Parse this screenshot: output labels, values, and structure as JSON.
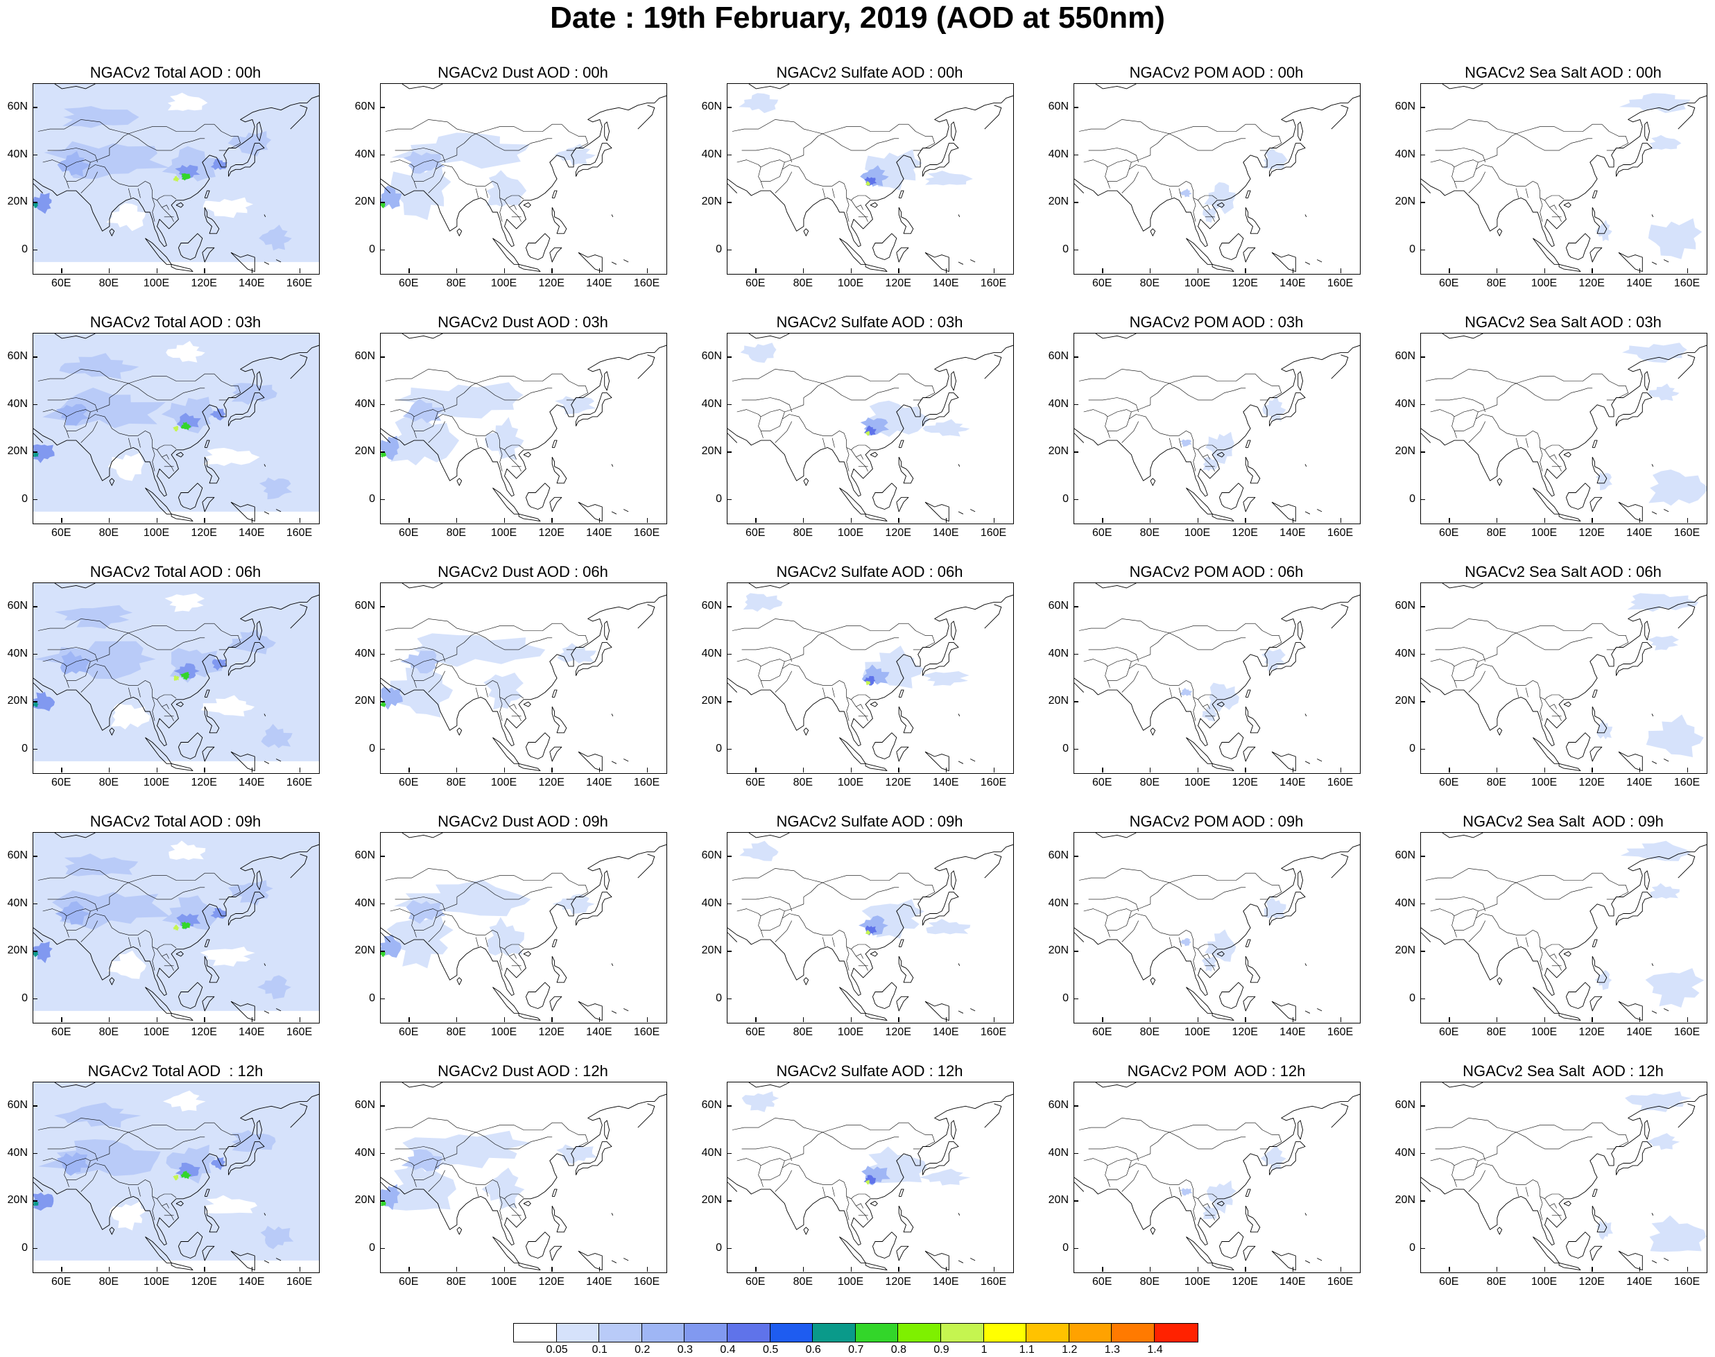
{
  "title": "Date : 19th February, 2019 (AOD at 550nm)",
  "map": {
    "lon_range": [
      48,
      168
    ],
    "lat_range": [
      -10,
      70
    ],
    "lat_ticks": [
      {
        "v": 60,
        "label": "60N"
      },
      {
        "v": 40,
        "label": "40N"
      },
      {
        "v": 20,
        "label": "20N"
      },
      {
        "v": 0,
        "label": "0"
      }
    ],
    "lon_ticks": [
      {
        "v": 60,
        "label": "60E"
      },
      {
        "v": 80,
        "label": "80E"
      },
      {
        "v": 100,
        "label": "100E"
      },
      {
        "v": 120,
        "label": "120E"
      },
      {
        "v": 140,
        "label": "140E"
      },
      {
        "v": 160,
        "label": "160E"
      }
    ]
  },
  "columns": [
    "total",
    "dust",
    "sulfate",
    "pom",
    "seasalt"
  ],
  "panels": [
    [
      "NGACv2 Total AOD : 00h",
      "NGACv2 Dust AOD : 00h",
      "NGACv2 Sulfate AOD : 00h",
      "NGACv2 POM AOD : 00h",
      "NGACv2 Sea Salt AOD : 00h"
    ],
    [
      "NGACv2 Total AOD : 03h",
      "NGACv2 Dust AOD : 03h",
      "NGACv2 Sulfate AOD : 03h",
      "NGACv2 POM AOD : 03h",
      "NGACv2 Sea Salt AOD : 03h"
    ],
    [
      "NGACv2 Total AOD : 06h",
      "NGACv2 Dust AOD : 06h",
      "NGACv2 Sulfate AOD : 06h",
      "NGACv2 POM AOD : 06h",
      "NGACv2 Sea Salt AOD : 06h"
    ],
    [
      "NGACv2 Total AOD : 09h",
      "NGACv2 Dust AOD : 09h",
      "NGACv2 Sulfate AOD : 09h",
      "NGACv2 POM AOD : 09h",
      "NGACv2 Sea Salt  AOD : 09h"
    ],
    [
      "NGACv2 Total AOD  : 12h",
      "NGACv2 Dust AOD : 12h",
      "NGACv2 Sulfate AOD : 12h",
      "NGACv2 POM  AOD : 12h",
      "NGACv2 Sea Salt  AOD : 12h"
    ]
  ],
  "colorbar": {
    "labels": [
      "0.05",
      "0.1",
      "0.2",
      "0.3",
      "0.4",
      "0.5",
      "0.6",
      "0.7",
      "0.8",
      "0.9",
      "1",
      "1.1",
      "1.2",
      "1.3",
      "1.4"
    ],
    "colors": [
      "#ffffff",
      "#d6e2fb",
      "#b9cbf8",
      "#9fb6f5",
      "#8199f0",
      "#5f73ea",
      "#1e5cf0",
      "#0a9a8a",
      "#33d62a",
      "#7ef000",
      "#c5f550",
      "#ffff00",
      "#ffc200",
      "#ffa200",
      "#ff7a00",
      "#ff2200"
    ]
  },
  "plume_colors": {
    "c1": "#d6e2fb",
    "c2": "#b9cbf8",
    "c3": "#9fb6f5",
    "c4": "#8199f0",
    "c5": "#5f73ea",
    "teal": "#0a9a8a",
    "green": "#33d62a",
    "lime": "#c5f550"
  }
}
